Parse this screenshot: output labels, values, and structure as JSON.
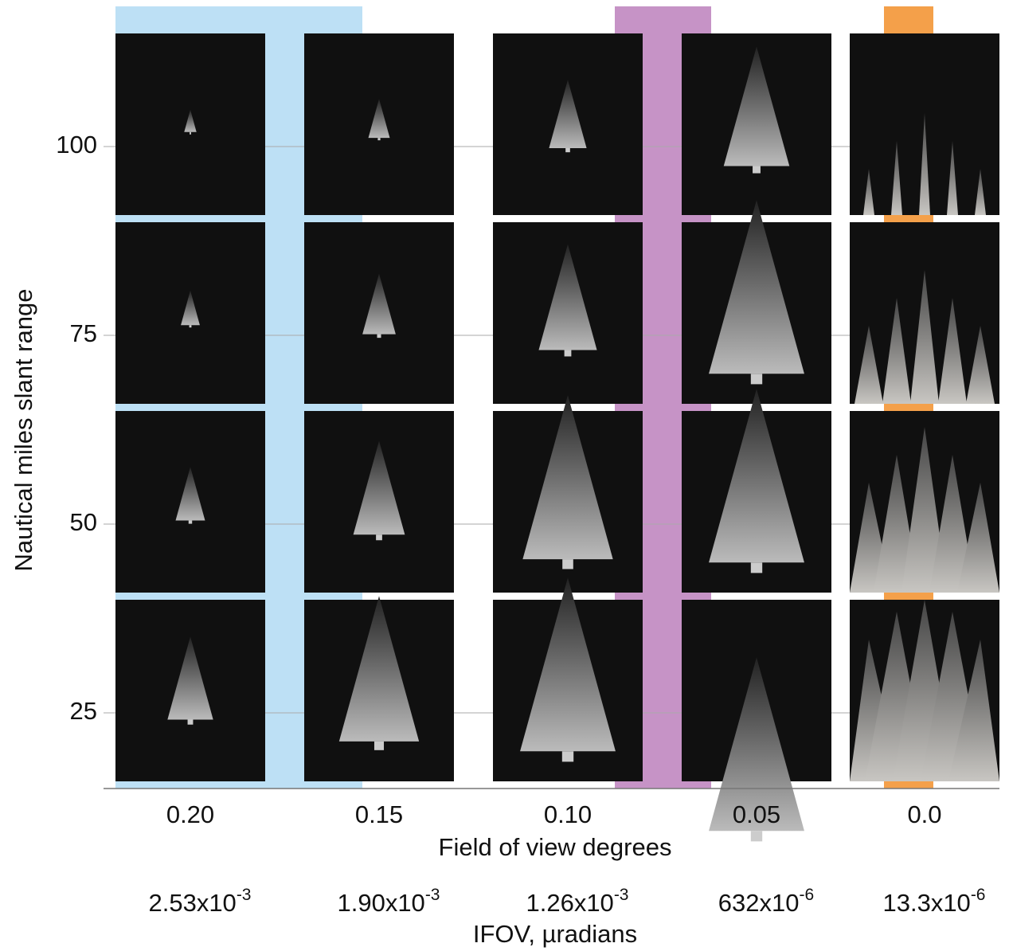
{
  "y_axis": {
    "title": "Nautical miles slant range",
    "ticks": [
      "100",
      "75",
      "50",
      "25"
    ]
  },
  "x_axis": {
    "title": "Field of view degrees",
    "ticks": [
      "0.20",
      "0.15",
      "0.10",
      "0.05",
      "0.0"
    ]
  },
  "ifov_axis": {
    "title": "IFOV, µradians",
    "ticks": [
      {
        "base": "2.53x10",
        "exp": "-3"
      },
      {
        "base": "1.90x10",
        "exp": "-3"
      },
      {
        "base": "1.26x10",
        "exp": "-3"
      },
      {
        "base": "632x10",
        "exp": "-6"
      },
      {
        "base": "13.3x10",
        "exp": "-6"
      }
    ]
  }
}
